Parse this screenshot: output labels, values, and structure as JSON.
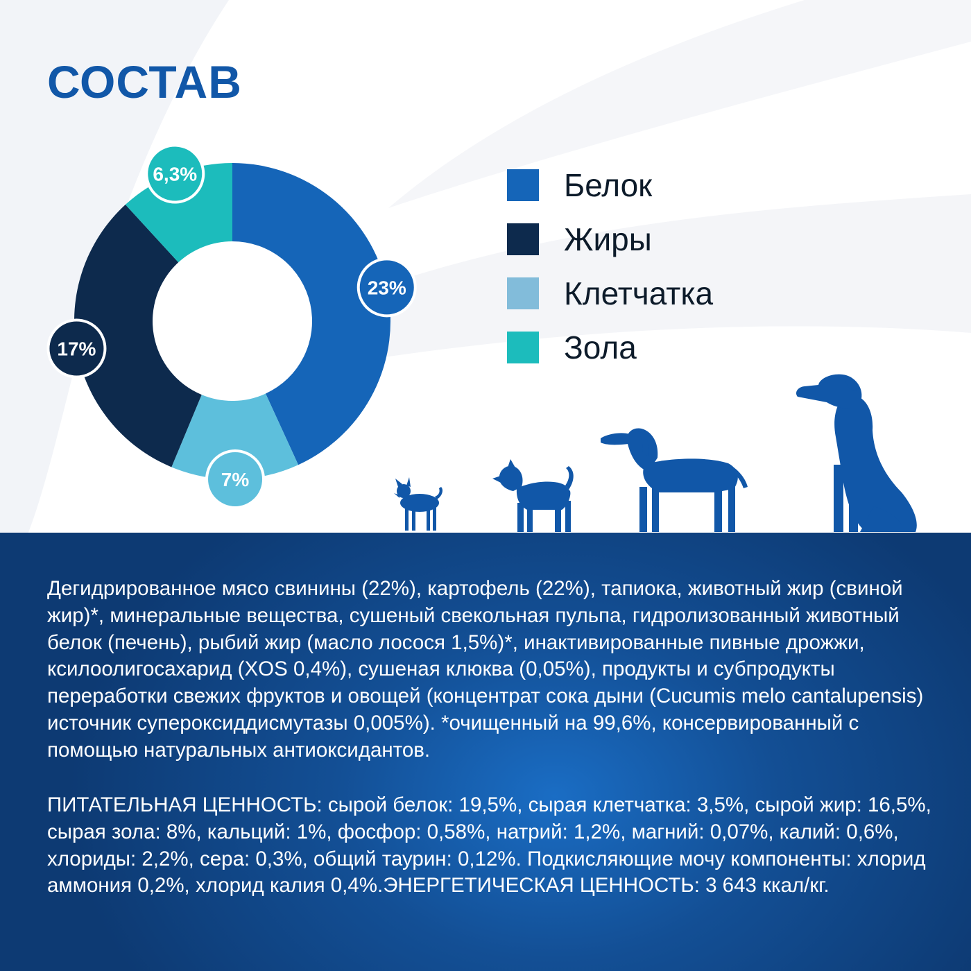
{
  "title": "СОСТАВ",
  "colors": {
    "protein": "#1565b8",
    "fat": "#0d2a4d",
    "fiber": "#5dbfdc",
    "ash": "#1cbcbc",
    "title": "#1157a8",
    "bottom_band": "#134f95"
  },
  "legend": [
    {
      "label": "Белок",
      "color": "#1565b8"
    },
    {
      "label": "Жиры",
      "color": "#0d2a4d"
    },
    {
      "label": "Клетчатка",
      "color": "#82bcda"
    },
    {
      "label": "Зола",
      "color": "#1cbcbc"
    }
  ],
  "chart_data": {
    "type": "pie",
    "donut": true,
    "title": "",
    "labels": [
      "Белок",
      "Жиры",
      "Клетчатка",
      "Зола"
    ],
    "values": [
      23,
      17,
      7,
      6.3
    ],
    "value_labels": [
      "23%",
      "17%",
      "7%",
      "6,3%"
    ],
    "colors": [
      "#1565b8",
      "#0d2a4d",
      "#5dbfdc",
      "#1cbcbc"
    ],
    "legend_position": "right"
  },
  "illustration": {
    "icons": [
      "small-dog-icon",
      "terrier-icon",
      "pointer-dog-icon",
      "great-dane-icon"
    ]
  },
  "ingredients_text": "Дегидрированное мясо свинины (22%), картофель (22%), тапиока, животный жир (свиной жир)*, минеральные вещества, сушеный свекольная пульпа, гидролизованный животный белок (печень), рыбий жир (масло лосося 1,5%)*, инактивированные пивные дрожжи, ксилоолигосахарид (XOS 0,4%), сушеная клюква (0,05%), продукты и субпродукты переработки свежих фруктов и овощей (концентрат сока дыни (Cucumis melo cantalupensis) источник супероксиддисмутазы 0,005%). *очищенный на 99,6%, консервированный с помощью натуральных антиоксидантов.",
  "nutrition_text": "ПИТАТЕЛЬНАЯ ЦЕННОСТЬ: сырой белок: 19,5%, сырая клетчатка: 3,5%, сырой жир: 16,5%, сырая зола: 8%, кальций: 1%, фосфор: 0,58%, натрий: 1,2%, магний: 0,07%, калий: 0,6%, хлориды: 2,2%, сера: 0,3%, общий таурин: 0,12%.  Подкисляющие мочу компоненты: хлорид аммония 0,2%, хлорид калия 0,4%.\u0002ЭНЕРГЕТИЧЕСКАЯ ЦЕННОСТЬ: 3 643 ккал/кг."
}
